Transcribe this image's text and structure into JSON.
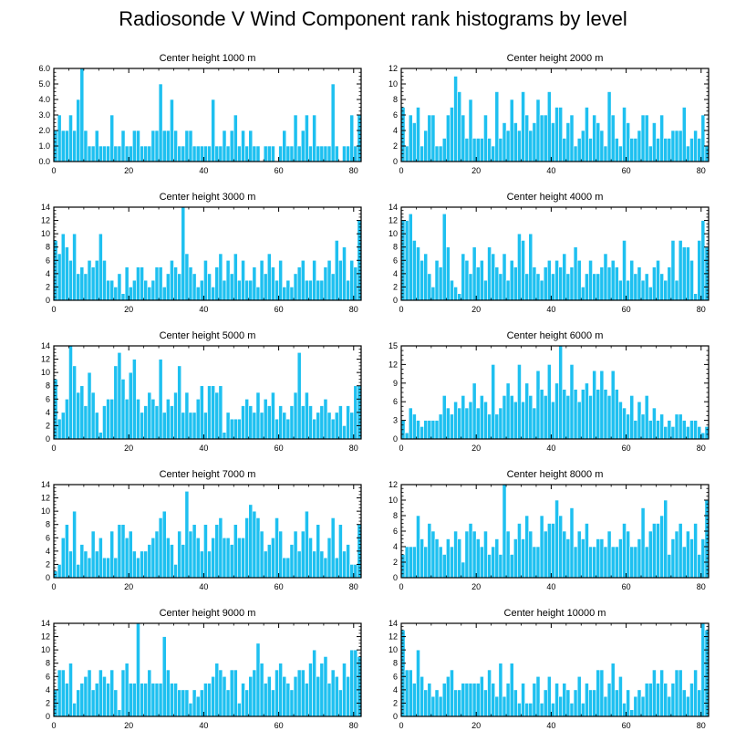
{
  "page": {
    "title": "Radiosonde V Wind Component rank histograms by level"
  },
  "style": {
    "bar_color": "#1ec0f0",
    "bar_edge": "#ffffff",
    "axis_color": "#000000"
  },
  "chart_data": [
    {
      "type": "bar",
      "title": "Center height 1000 m",
      "xlim": [
        0,
        82
      ],
      "ylim": [
        0,
        6
      ],
      "xticks": [
        0,
        20,
        40,
        60,
        80
      ],
      "xtick_labels": [
        "0",
        "20",
        "40",
        "60",
        "80"
      ],
      "yticks": [
        0,
        1,
        2,
        3,
        4,
        5,
        6
      ],
      "ytick_labels": [
        "0.0",
        "1.0",
        "2.0",
        "3.0",
        "4.0",
        "5.0",
        "6.0"
      ],
      "values": [
        2,
        3,
        2,
        2,
        3,
        2,
        4,
        6,
        2,
        1,
        1,
        2,
        1,
        1,
        1,
        3,
        1,
        1,
        2,
        1,
        1,
        2,
        2,
        1,
        1,
        1,
        2,
        2,
        5,
        2,
        2,
        4,
        2,
        1,
        1,
        2,
        2,
        1,
        1,
        1,
        1,
        1,
        4,
        1,
        1,
        2,
        1,
        2,
        3,
        1,
        2,
        1,
        2,
        1,
        1,
        0,
        1,
        1,
        1,
        0,
        1,
        2,
        1,
        1,
        3,
        1,
        2,
        3,
        1,
        3,
        1,
        1,
        1,
        1,
        5,
        1,
        0,
        1,
        1,
        3,
        1,
        3
      ]
    },
    {
      "type": "bar",
      "title": "Center height 2000 m",
      "xlim": [
        0,
        82
      ],
      "ylim": [
        0,
        12
      ],
      "xticks": [
        0,
        20,
        40,
        60,
        80
      ],
      "xtick_labels": [
        "0",
        "20",
        "40",
        "60",
        "80"
      ],
      "yticks": [
        0,
        2,
        4,
        6,
        8,
        10,
        12
      ],
      "ytick_labels": [
        "0",
        "2",
        "4",
        "6",
        "8",
        "10",
        "12"
      ],
      "values": [
        7,
        2,
        6,
        5,
        7,
        2,
        4,
        6,
        6,
        2,
        2,
        3,
        6,
        7,
        11,
        9,
        6,
        3,
        8,
        3,
        3,
        3,
        6,
        3,
        2,
        9,
        3,
        5,
        4,
        8,
        5,
        4,
        9,
        6,
        4,
        5,
        8,
        6,
        6,
        9,
        5,
        7,
        7,
        3,
        5,
        6,
        2,
        3,
        4,
        7,
        3,
        6,
        5,
        4,
        2,
        9,
        6,
        3,
        2,
        7,
        5,
        3,
        3,
        4,
        6,
        6,
        2,
        5,
        3,
        6,
        3,
        3,
        4,
        4,
        4,
        7,
        2,
        3,
        4,
        3,
        6,
        2
      ]
    },
    {
      "type": "bar",
      "title": "Center height 3000 m",
      "xlim": [
        0,
        82
      ],
      "ylim": [
        0,
        14
      ],
      "xticks": [
        0,
        20,
        40,
        60,
        80
      ],
      "xtick_labels": [
        "0",
        "20",
        "40",
        "60",
        "80"
      ],
      "yticks": [
        0,
        2,
        4,
        6,
        8,
        10,
        12,
        14
      ],
      "ytick_labels": [
        "0",
        "2",
        "4",
        "6",
        "8",
        "10",
        "12",
        "14"
      ],
      "values": [
        9,
        7,
        10,
        8,
        6,
        10,
        4,
        5,
        4,
        6,
        5,
        6,
        10,
        6,
        3,
        3,
        2,
        4,
        1,
        5,
        2,
        3,
        5,
        5,
        3,
        2,
        3,
        5,
        5,
        2,
        4,
        6,
        5,
        4,
        14,
        7,
        5,
        4,
        2,
        3,
        6,
        4,
        2,
        5,
        7,
        3,
        6,
        4,
        7,
        3,
        6,
        3,
        3,
        5,
        2,
        6,
        4,
        7,
        5,
        3,
        6,
        2,
        3,
        2,
        4,
        5,
        6,
        3,
        3,
        6,
        3,
        3,
        5,
        6,
        4,
        9,
        6,
        8,
        3,
        6,
        5,
        12
      ]
    },
    {
      "type": "bar",
      "title": "Center height 4000 m",
      "xlim": [
        0,
        82
      ],
      "ylim": [
        0,
        14
      ],
      "xticks": [
        0,
        20,
        40,
        60,
        80
      ],
      "xtick_labels": [
        "0",
        "20",
        "40",
        "60",
        "80"
      ],
      "yticks": [
        0,
        2,
        4,
        6,
        8,
        10,
        12,
        14
      ],
      "ytick_labels": [
        "0",
        "2",
        "4",
        "6",
        "8",
        "10",
        "12",
        "14"
      ],
      "values": [
        12,
        12,
        13,
        9,
        8,
        6,
        7,
        4,
        2,
        6,
        5,
        13,
        8,
        3,
        2,
        1,
        7,
        6,
        4,
        8,
        5,
        6,
        3,
        8,
        7,
        5,
        4,
        7,
        3,
        6,
        5,
        10,
        9,
        4,
        10,
        5,
        4,
        3,
        5,
        6,
        4,
        6,
        5,
        7,
        4,
        5,
        8,
        6,
        2,
        4,
        6,
        4,
        4,
        5,
        7,
        5,
        6,
        5,
        3,
        9,
        3,
        6,
        4,
        5,
        3,
        4,
        2,
        5,
        6,
        4,
        3,
        5,
        9,
        3,
        9,
        8,
        8,
        6,
        1,
        9,
        12,
        8
      ]
    },
    {
      "type": "bar",
      "title": "Center height 5000 m",
      "xlim": [
        0,
        82
      ],
      "ylim": [
        0,
        14
      ],
      "xticks": [
        0,
        20,
        40,
        60,
        80
      ],
      "xtick_labels": [
        "0",
        "20",
        "40",
        "60",
        "80"
      ],
      "yticks": [
        0,
        2,
        4,
        6,
        8,
        10,
        12,
        14
      ],
      "ytick_labels": [
        "0",
        "2",
        "4",
        "6",
        "8",
        "10",
        "12",
        "14"
      ],
      "values": [
        9,
        3,
        4,
        6,
        14,
        11,
        7,
        8,
        5,
        10,
        7,
        4,
        1,
        5,
        6,
        6,
        11,
        13,
        9,
        6,
        10,
        12,
        6,
        4,
        5,
        7,
        6,
        5,
        12,
        4,
        6,
        5,
        7,
        11,
        4,
        7,
        4,
        4,
        6,
        8,
        4,
        8,
        8,
        7,
        8,
        1,
        4,
        3,
        3,
        3,
        5,
        6,
        5,
        4,
        7,
        4,
        6,
        5,
        7,
        3,
        5,
        4,
        3,
        5,
        7,
        13,
        5,
        7,
        5,
        3,
        4,
        5,
        6,
        4,
        3,
        4,
        5,
        2,
        5,
        4,
        8,
        8
      ]
    },
    {
      "type": "bar",
      "title": "Center height 6000 m",
      "xlim": [
        0,
        82
      ],
      "ylim": [
        0,
        15
      ],
      "xticks": [
        0,
        20,
        40,
        60,
        80
      ],
      "xtick_labels": [
        "0",
        "20",
        "40",
        "60",
        "80"
      ],
      "yticks": [
        0,
        3,
        6,
        9,
        12,
        15
      ],
      "ytick_labels": [
        "0",
        "3",
        "6",
        "9",
        "12",
        "15"
      ],
      "values": [
        3,
        1,
        5,
        4,
        3,
        2,
        3,
        3,
        3,
        3,
        4,
        7,
        5,
        4,
        6,
        5,
        7,
        5,
        6,
        9,
        5,
        7,
        6,
        4,
        12,
        4,
        5,
        7,
        9,
        7,
        6,
        12,
        6,
        9,
        7,
        5,
        11,
        8,
        7,
        12,
        6,
        9,
        15,
        8,
        7,
        12,
        8,
        6,
        8,
        9,
        7,
        11,
        8,
        11,
        8,
        7,
        11,
        8,
        6,
        5,
        4,
        7,
        3,
        6,
        4,
        7,
        3,
        5,
        3,
        4,
        2,
        3,
        2,
        4,
        4,
        3,
        2,
        3,
        3,
        2,
        1,
        2
      ]
    },
    {
      "type": "bar",
      "title": "Center height 7000 m",
      "xlim": [
        0,
        82
      ],
      "ylim": [
        0,
        14
      ],
      "xticks": [
        0,
        20,
        40,
        60,
        80
      ],
      "xtick_labels": [
        "0",
        "20",
        "40",
        "60",
        "80"
      ],
      "yticks": [
        0,
        2,
        4,
        6,
        8,
        10,
        12,
        14
      ],
      "ytick_labels": [
        "0",
        "2",
        "4",
        "6",
        "8",
        "10",
        "12",
        "14"
      ],
      "values": [
        1,
        2,
        6,
        8,
        4,
        10,
        2,
        5,
        4,
        3,
        7,
        4,
        6,
        3,
        3,
        7,
        3,
        8,
        8,
        6,
        7,
        4,
        3,
        4,
        4,
        5,
        6,
        7,
        9,
        10,
        6,
        5,
        2,
        7,
        5,
        13,
        7,
        8,
        6,
        4,
        8,
        4,
        6,
        8,
        9,
        6,
        6,
        5,
        8,
        6,
        6,
        9,
        11,
        10,
        9,
        7,
        4,
        5,
        6,
        9,
        7,
        3,
        3,
        5,
        7,
        4,
        7,
        10,
        6,
        4,
        8,
        4,
        3,
        6,
        9,
        3,
        8,
        4,
        5,
        2,
        2,
        8
      ]
    },
    {
      "type": "bar",
      "title": "Center height 8000 m",
      "xlim": [
        0,
        82
      ],
      "ylim": [
        0,
        12
      ],
      "xticks": [
        0,
        20,
        40,
        60,
        80
      ],
      "xtick_labels": [
        "0",
        "20",
        "40",
        "60",
        "80"
      ],
      "yticks": [
        0,
        2,
        4,
        6,
        8,
        10,
        12
      ],
      "ytick_labels": [
        "0",
        "2",
        "4",
        "6",
        "8",
        "10",
        "12"
      ],
      "values": [
        3,
        4,
        4,
        4,
        8,
        5,
        4,
        7,
        6,
        5,
        4,
        3,
        5,
        4,
        6,
        5,
        2,
        6,
        7,
        6,
        5,
        4,
        6,
        3,
        4,
        5,
        3,
        12,
        6,
        3,
        5,
        7,
        5,
        8,
        6,
        4,
        4,
        8,
        6,
        7,
        7,
        10,
        8,
        6,
        5,
        9,
        4,
        6,
        5,
        7,
        4,
        4,
        5,
        5,
        4,
        6,
        4,
        4,
        5,
        7,
        6,
        4,
        4,
        5,
        9,
        4,
        6,
        7,
        7,
        8,
        10,
        3,
        5,
        6,
        7,
        4,
        6,
        5,
        7,
        3,
        5,
        10
      ]
    },
    {
      "type": "bar",
      "title": "Center height 9000 m",
      "xlim": [
        0,
        82
      ],
      "ylim": [
        0,
        14
      ],
      "xticks": [
        0,
        20,
        40,
        60,
        80
      ],
      "xtick_labels": [
        "0",
        "20",
        "40",
        "60",
        "80"
      ],
      "yticks": [
        0,
        2,
        4,
        6,
        8,
        10,
        12,
        14
      ],
      "ytick_labels": [
        "0",
        "2",
        "4",
        "6",
        "8",
        "10",
        "12",
        "14"
      ],
      "values": [
        4,
        7,
        7,
        5,
        8,
        2,
        4,
        5,
        6,
        7,
        4,
        5,
        7,
        6,
        5,
        7,
        4,
        1,
        7,
        8,
        5,
        5,
        14,
        5,
        5,
        7,
        5,
        5,
        5,
        12,
        7,
        5,
        5,
        4,
        4,
        4,
        2,
        4,
        3,
        4,
        5,
        5,
        6,
        8,
        7,
        6,
        4,
        7,
        7,
        2,
        5,
        4,
        6,
        7,
        11,
        8,
        5,
        6,
        4,
        7,
        8,
        6,
        5,
        4,
        6,
        7,
        7,
        5,
        8,
        10,
        6,
        8,
        9,
        5,
        7,
        6,
        4,
        8,
        6,
        10,
        10,
        9
      ]
    },
    {
      "type": "bar",
      "title": "Center height 10000 m",
      "xlim": [
        0,
        82
      ],
      "ylim": [
        0,
        14
      ],
      "xticks": [
        0,
        20,
        40,
        60,
        80
      ],
      "xtick_labels": [
        "0",
        "20",
        "40",
        "60",
        "80"
      ],
      "yticks": [
        0,
        2,
        4,
        6,
        8,
        10,
        12,
        14
      ],
      "ytick_labels": [
        "0",
        "2",
        "4",
        "6",
        "8",
        "10",
        "12",
        "14"
      ],
      "values": [
        13,
        7,
        7,
        5,
        10,
        6,
        4,
        5,
        3,
        4,
        3,
        5,
        6,
        7,
        4,
        4,
        5,
        5,
        5,
        5,
        5,
        6,
        4,
        7,
        5,
        3,
        8,
        3,
        5,
        8,
        4,
        2,
        5,
        2,
        2,
        5,
        6,
        2,
        4,
        6,
        2,
        5,
        3,
        5,
        4,
        2,
        4,
        6,
        2,
        5,
        4,
        4,
        7,
        7,
        3,
        5,
        8,
        4,
        6,
        2,
        4,
        1,
        3,
        4,
        3,
        5,
        5,
        7,
        5,
        7,
        5,
        3,
        5,
        7,
        7,
        4,
        3,
        5,
        7,
        4,
        14,
        13
      ]
    }
  ]
}
